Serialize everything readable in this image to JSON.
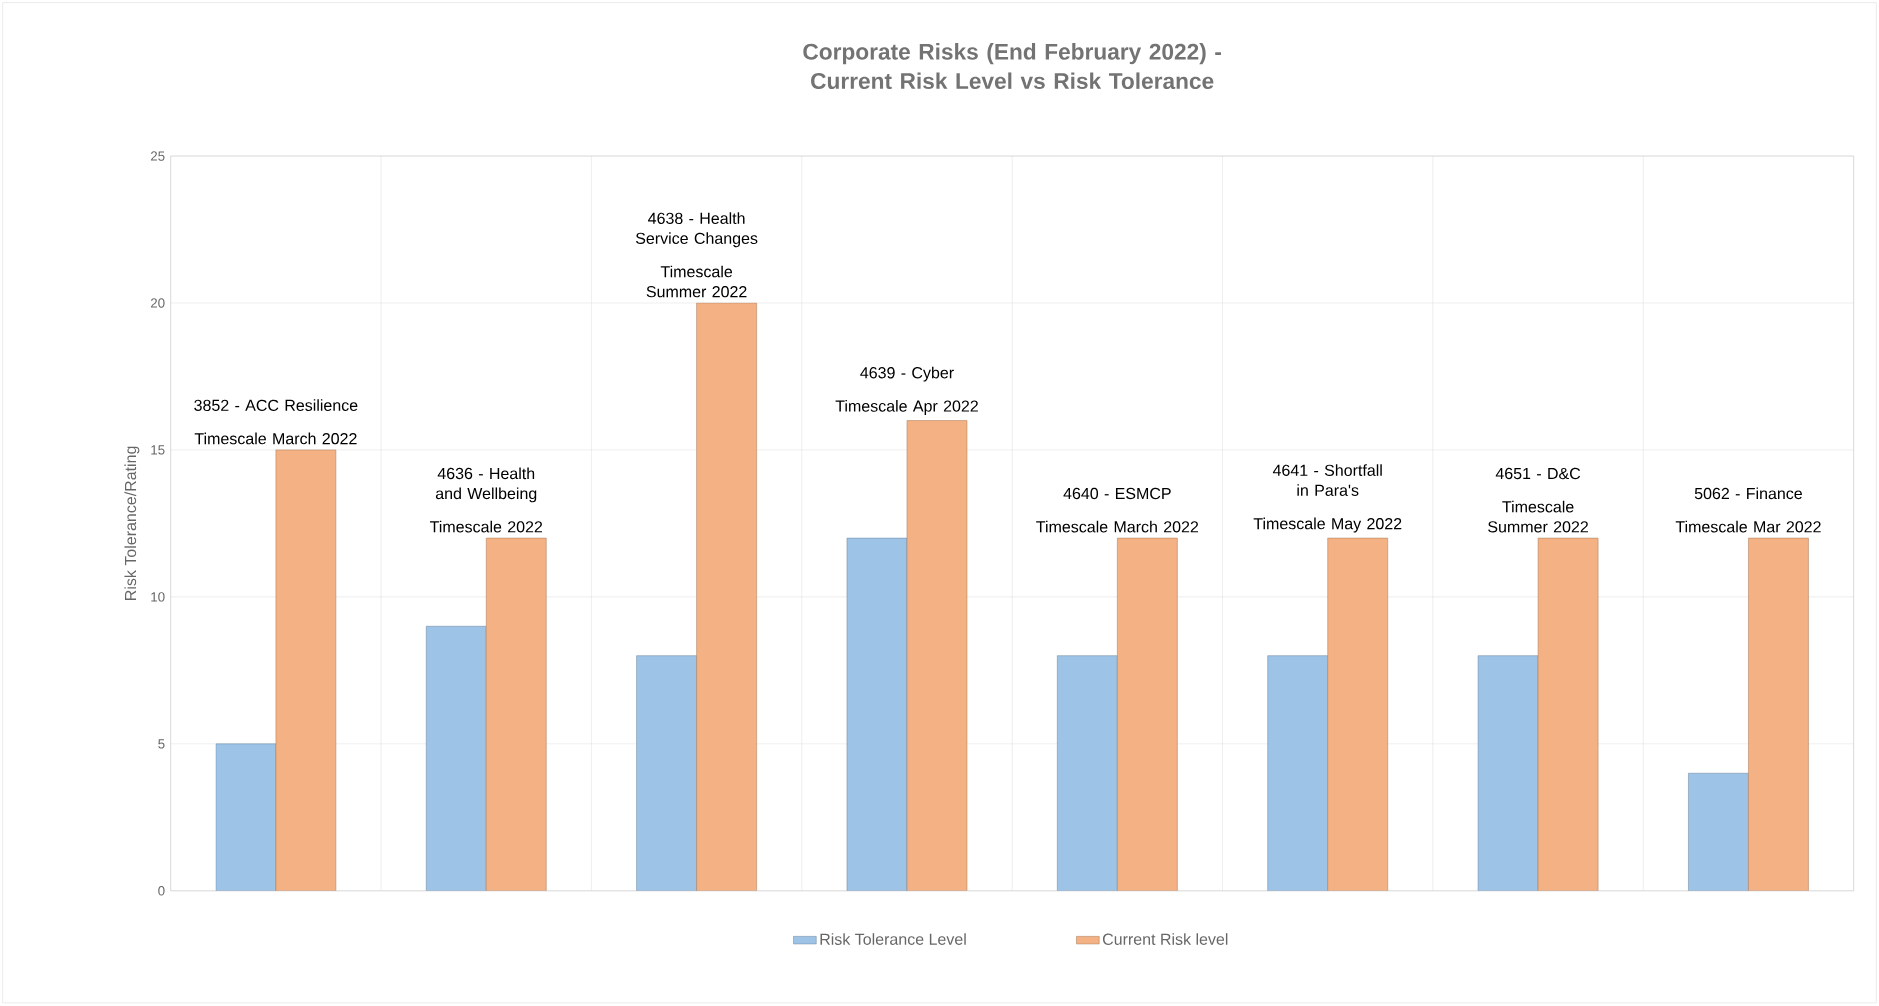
{
  "chart_data": {
    "type": "bar",
    "title": "Corporate Risks (End February 2022) - Current Risk Level vs Risk Tolerance",
    "ylabel": "Risk Tolerance/Rating",
    "categories": [
      null,
      null,
      null,
      null,
      null,
      null,
      null,
      null
    ],
    "series": [
      {
        "name": "Risk Tolerance Level",
        "color": "#9dc3e6",
        "values": [
          5,
          9,
          8,
          12,
          8,
          8,
          8,
          4
        ]
      },
      {
        "name": "Current Risk level",
        "color": "#f4b183",
        "values": [
          15,
          12,
          20,
          16,
          12,
          12,
          12,
          12
        ]
      }
    ],
    "annotations": [
      "3852 - ACC Resilience",
      "Timescale March 2022",
      "4636 - Health and Wellbeing",
      "Timescale 2022",
      "4638 - Health Service Changes",
      "Timescale Summer 2022",
      "4639 - Cyber",
      "Timescale Apr 2022",
      "4640 - ESMCP",
      "Timescale March 2022",
      "4641 - Shortfall in Para's",
      "Timescale May 2022",
      "4651 - D&C",
      "Timescale Summer 2022",
      "5062 - Finance",
      "Timescale Mar 2022"
    ],
    "ylim": [
      0,
      25
    ],
    "yticks": [
      0,
      5,
      10,
      15,
      20,
      25
    ],
    "grid": true,
    "legend": "bottom",
    "tick_labels": "y"
  }
}
